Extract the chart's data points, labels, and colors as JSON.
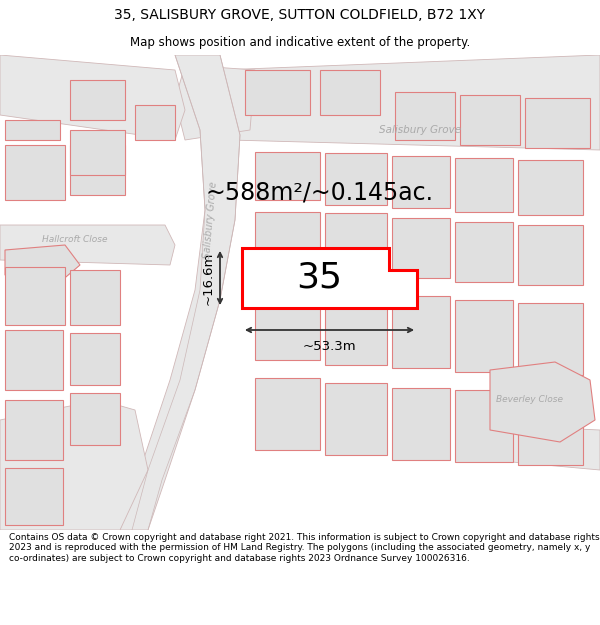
{
  "title_line1": "35, SALISBURY GROVE, SUTTON COLDFIELD, B72 1XY",
  "title_line2": "Map shows position and indicative extent of the property.",
  "footer_text": "Contains OS data © Crown copyright and database right 2021. This information is subject to Crown copyright and database rights 2023 and is reproduced with the permission of HM Land Registry. The polygons (including the associated geometry, namely x, y co-ordinates) are subject to Crown copyright and database rights 2023 Ordnance Survey 100026316.",
  "area_label": "~588m²/~0.145ac.",
  "property_number": "35",
  "dim_width": "~53.3m",
  "dim_height": "~16.6m",
  "bg_color": "#f2f2f2",
  "road_fill_color": "#e8e8e8",
  "road_edge_color": "#d0b8b8",
  "prop_fill_color": "#e0e0e0",
  "prop_edge_color": "#e08080",
  "subject_fill": "#ffffff",
  "subject_edge": "#ff0000",
  "dim_color": "#333333",
  "street_color": "#aaaaaa",
  "title_fontsize": 10,
  "subtitle_fontsize": 8.5,
  "footer_fontsize": 6.5,
  "area_fontsize": 17,
  "num_fontsize": 26,
  "dim_fontsize": 9.5,
  "street_label_1": "Salisbury Grove",
  "street_label_2": "Hallcroft Close",
  "street_label_3": "Beverley Close"
}
